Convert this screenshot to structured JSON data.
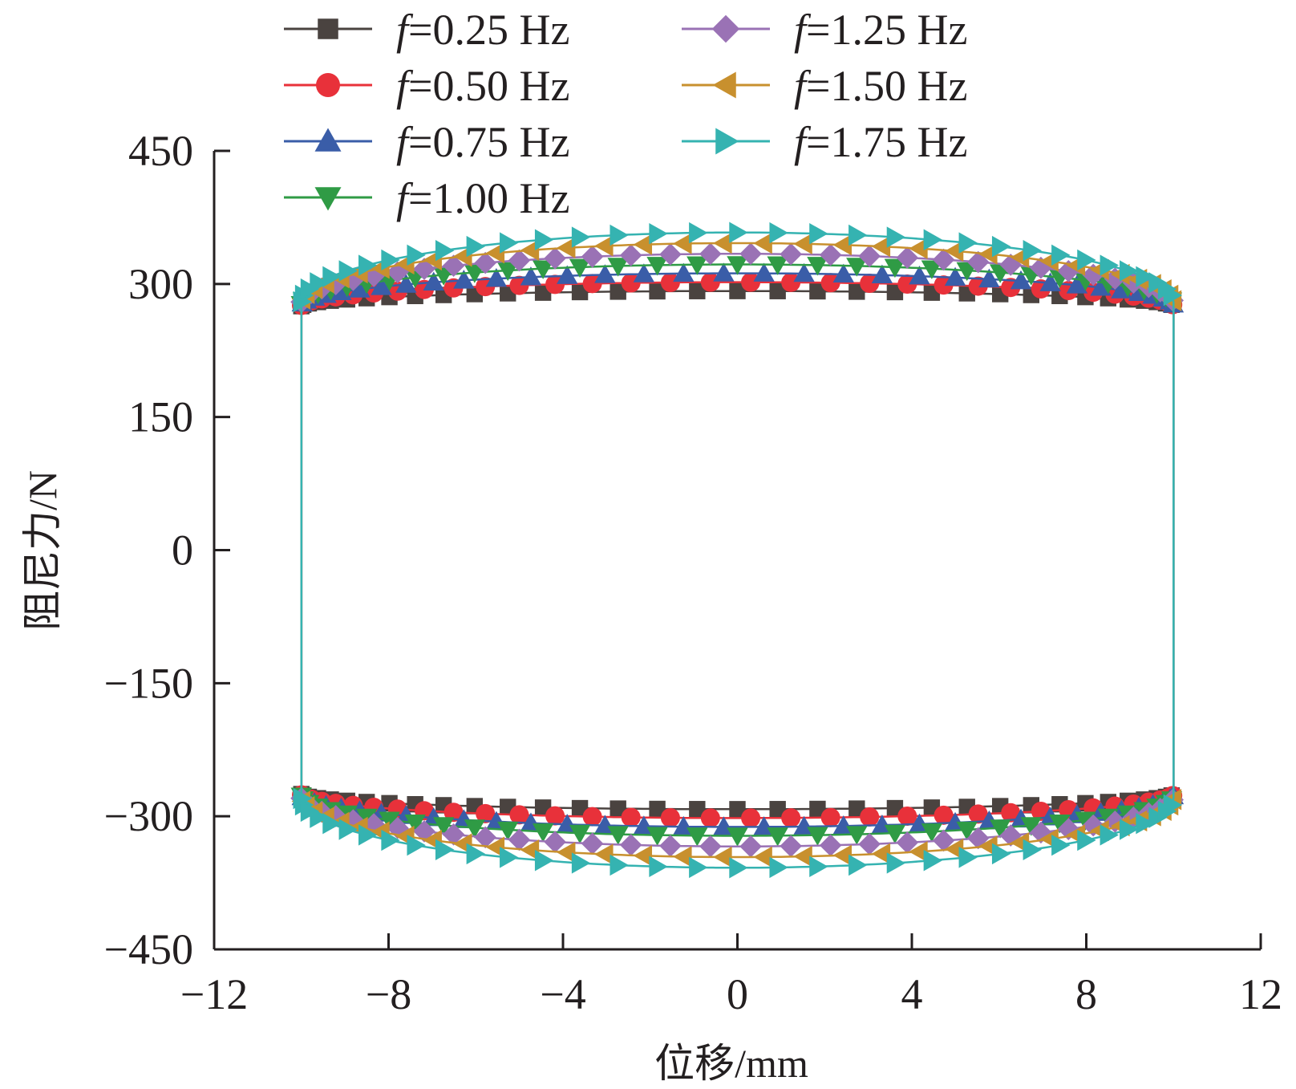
{
  "chart_data": {
    "type": "line",
    "xlabel": "位移/mm",
    "ylabel": "阻尼力/N",
    "xlim": [
      -12,
      12
    ],
    "ylim": [
      -450,
      450
    ],
    "xticks": [
      "−12",
      "−8",
      "−4",
      "0",
      "4",
      "8",
      "12"
    ],
    "yticks": [
      "−450",
      "−300",
      "−150",
      "0",
      "150",
      "300",
      "450"
    ],
    "xtick_values": [
      -12,
      -8,
      -4,
      0,
      4,
      8,
      12
    ],
    "ytick_values": [
      -450,
      -300,
      -150,
      0,
      150,
      300,
      450
    ],
    "amplitude": 10,
    "grid": false,
    "legend_position": "top",
    "series": [
      {
        "name": "f=0.25 Hz",
        "freq": "=0.25 Hz",
        "color": "#4a4340",
        "marker": "square",
        "peak": 292,
        "edge": 275
      },
      {
        "name": "f=0.50 Hz",
        "freq": "=0.50 Hz",
        "color": "#e8313a",
        "marker": "circle",
        "peak": 302,
        "edge": 275
      },
      {
        "name": "f=0.75 Hz",
        "freq": "=0.75 Hz",
        "color": "#3a5da8",
        "marker": "triangle-up",
        "peak": 312,
        "edge": 276
      },
      {
        "name": "f=1.00 Hz",
        "freq": "=1.00 Hz",
        "color": "#2f9b45",
        "marker": "triangle-down",
        "peak": 322,
        "edge": 277
      },
      {
        "name": "f=1.25 Hz",
        "freq": "=1.25 Hz",
        "color": "#9a72b5",
        "marker": "diamond",
        "peak": 334,
        "edge": 278
      },
      {
        "name": "f=1.50 Hz",
        "freq": "=1.50 Hz",
        "color": "#c8902e",
        "marker": "triangle-left",
        "peak": 346,
        "edge": 279
      },
      {
        "name": "f=1.75 Hz",
        "freq": "=1.75 Hz",
        "color": "#35b3b1",
        "marker": "triangle-right",
        "peak": 358,
        "edge": 280
      }
    ]
  }
}
